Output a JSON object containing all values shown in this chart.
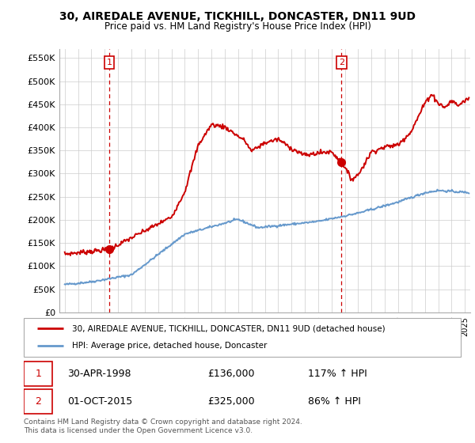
{
  "title": "30, AIREDALE AVENUE, TICKHILL, DONCASTER, DN11 9UD",
  "subtitle": "Price paid vs. HM Land Registry's House Price Index (HPI)",
  "ylabel_ticks": [
    "£0",
    "£50K",
    "£100K",
    "£150K",
    "£200K",
    "£250K",
    "£300K",
    "£350K",
    "£400K",
    "£450K",
    "£500K",
    "£550K"
  ],
  "ytick_values": [
    0,
    50000,
    100000,
    150000,
    200000,
    250000,
    300000,
    350000,
    400000,
    450000,
    500000,
    550000
  ],
  "xlim_start": 1994.6,
  "xlim_end": 2025.4,
  "ylim_min": 0,
  "ylim_max": 570000,
  "purchase1_year": 1998.33,
  "purchase1_price": 136000,
  "purchase2_year": 2015.75,
  "purchase2_price": 325000,
  "purchase1_date": "30-APR-1998",
  "purchase1_pct": "117% ↑ HPI",
  "purchase2_date": "01-OCT-2015",
  "purchase2_pct": "86% ↑ HPI",
  "red_color": "#cc0000",
  "blue_color": "#6699cc",
  "grid_color": "#cccccc",
  "bg_color": "#ffffff",
  "legend_label_red": "30, AIREDALE AVENUE, TICKHILL, DONCASTER, DN11 9UD (detached house)",
  "legend_label_blue": "HPI: Average price, detached house, Doncaster",
  "footer": "Contains HM Land Registry data © Crown copyright and database right 2024.\nThis data is licensed under the Open Government Licence v3.0."
}
